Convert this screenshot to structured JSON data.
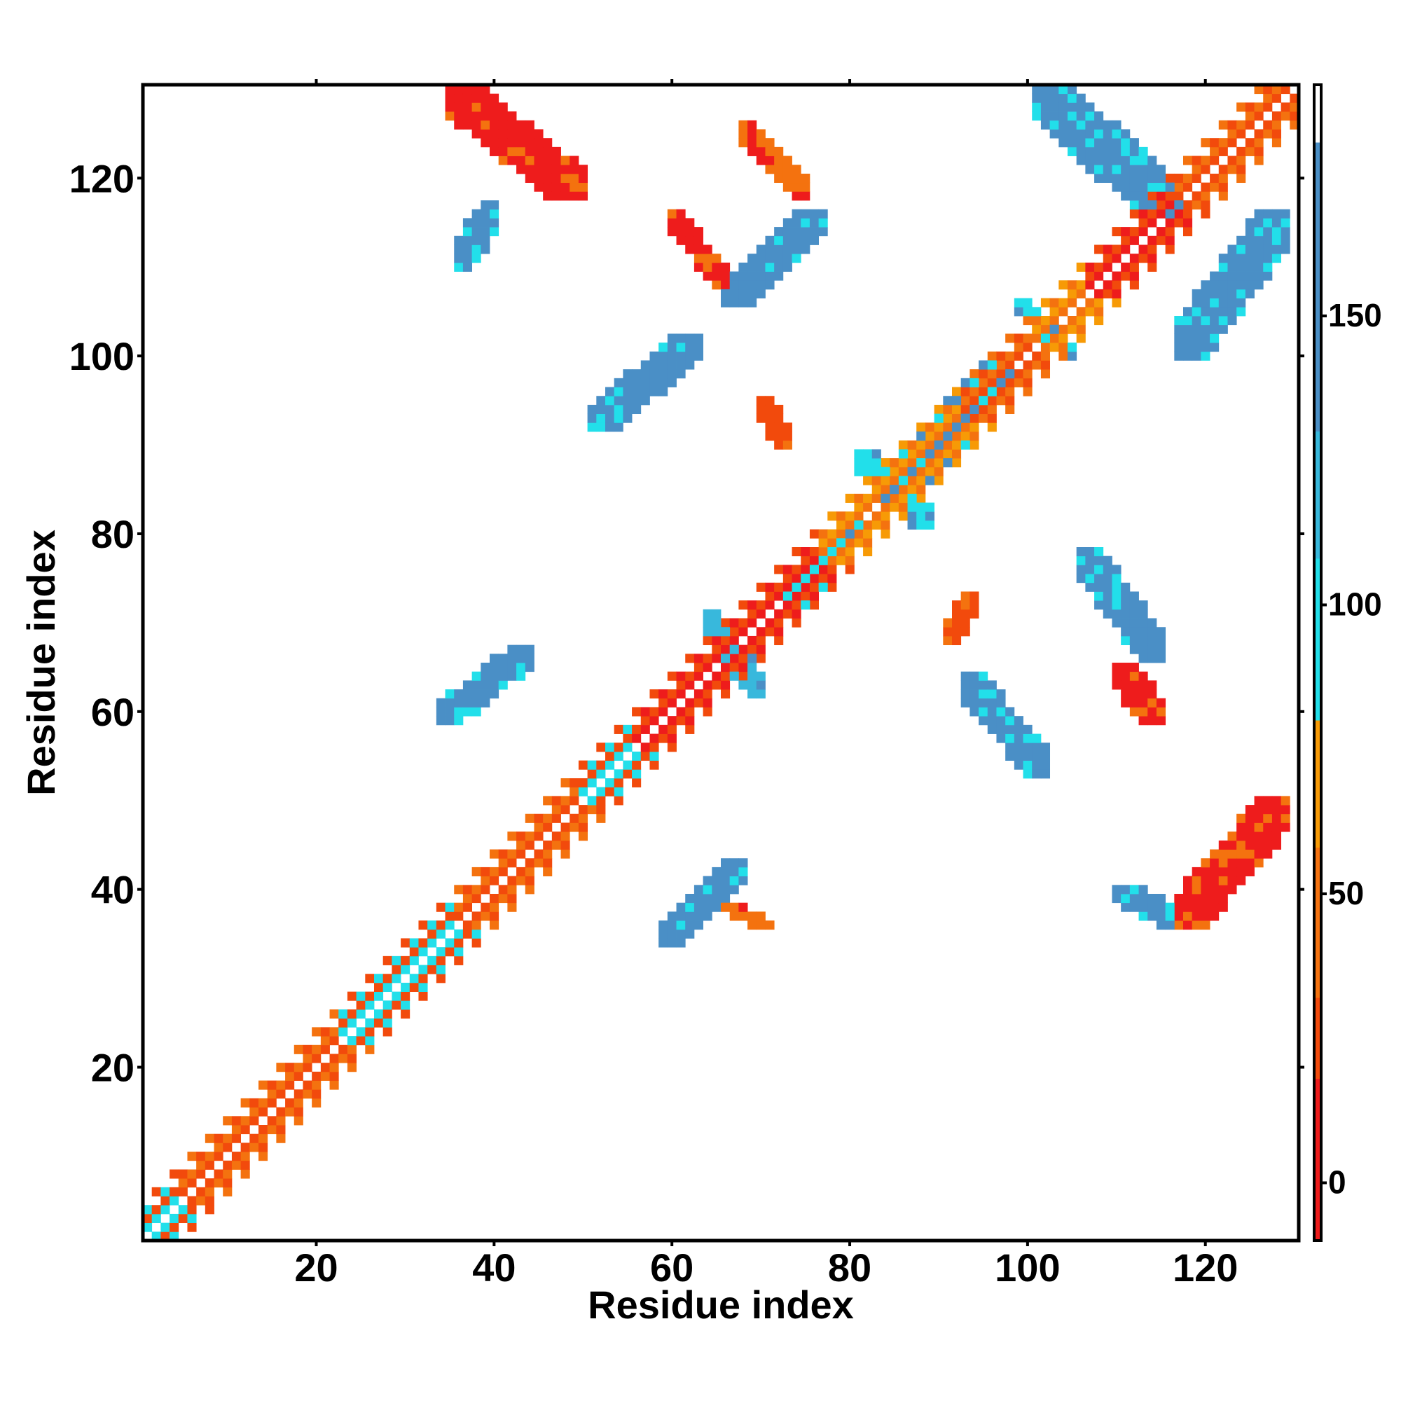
{
  "chart_data": {
    "type": "heatmap",
    "title": "",
    "xlabel": "Residue index",
    "ylabel": "Residue index",
    "xlim": [
      1,
      130
    ],
    "ylim": [
      1,
      130
    ],
    "x_ticks": [
      20,
      40,
      60,
      80,
      100,
      120
    ],
    "y_ticks": [
      20,
      40,
      60,
      80,
      100,
      120
    ],
    "grid": false,
    "colorbar": {
      "placement": "right",
      "range": [
        -10,
        190
      ],
      "ticks": [
        0,
        50,
        100,
        150
      ],
      "bands": [
        {
          "from": -10,
          "to": 18,
          "color": "#ee1c1c"
        },
        {
          "from": 18,
          "to": 32,
          "color": "#f24a0c"
        },
        {
          "from": 32,
          "to": 58,
          "color": "#f4720f"
        },
        {
          "from": 58,
          "to": 80,
          "color": "#f79a06"
        },
        {
          "from": 80,
          "to": 108,
          "color": "#22dfea"
        },
        {
          "from": 108,
          "to": 130,
          "color": "#38b8dc"
        },
        {
          "from": 130,
          "to": 180,
          "color": "#4a8fc6"
        },
        {
          "from": 180,
          "to": 190,
          "color": "#ffffff"
        }
      ]
    },
    "regions": [
      {
        "x": [
          1,
          130
        ],
        "y": [
          1,
          130
        ],
        "diag_offset": 0,
        "value": 160,
        "kind": "empty-diagonal"
      },
      {
        "kind": "diagonal-band",
        "x": [
          1,
          130
        ],
        "width": 3,
        "values_by_segment": [
          {
            "x": [
              1,
              4
            ],
            "value": 95
          },
          {
            "x": [
              4,
              22
            ],
            "value": 20
          },
          {
            "x": [
              22,
              35
            ],
            "value": 90
          },
          {
            "x": [
              35,
              49
            ],
            "value": 30
          },
          {
            "x": [
              49,
              55
            ],
            "value": 95
          },
          {
            "x": [
              55,
              76
            ],
            "value": 5
          },
          {
            "x": [
              76,
              86
            ],
            "value": 40
          },
          {
            "x": [
              86,
              92
            ],
            "value": 45
          },
          {
            "x": [
              92,
              100
            ],
            "value": 20
          },
          {
            "x": [
              100,
              106
            ],
            "value": 50
          },
          {
            "x": [
              106,
              116
            ],
            "value": 5
          },
          {
            "x": [
              116,
              130
            ],
            "value": 20
          }
        ]
      },
      {
        "kind": "cluster",
        "x": [
          35,
          50
        ],
        "y": [
          118,
          130
        ],
        "value": 10
      },
      {
        "kind": "cluster",
        "x": [
          36,
          40
        ],
        "y": [
          110,
          117
        ],
        "value": 145
      },
      {
        "kind": "cluster",
        "x": [
          60,
          66
        ],
        "y": [
          108,
          116
        ],
        "value": 10
      },
      {
        "kind": "cluster",
        "x": [
          66,
          77
        ],
        "y": [
          106,
          116
        ],
        "value": 145
      },
      {
        "kind": "cluster",
        "x": [
          68,
          75
        ],
        "y": [
          118,
          126
        ],
        "value": 55
      },
      {
        "kind": "cluster",
        "x": [
          51,
          63
        ],
        "y": [
          92,
          102
        ],
        "value": 140
      },
      {
        "kind": "cluster",
        "x": [
          70,
          73
        ],
        "y": [
          90,
          95
        ],
        "value": 25
      },
      {
        "kind": "cluster",
        "x": [
          86,
          98
        ],
        "y": [
          86,
          99
        ],
        "value": 145
      },
      {
        "kind": "cluster",
        "x": [
          81,
          89
        ],
        "y": [
          81,
          89
        ],
        "value": 105
      },
      {
        "kind": "cluster",
        "x": [
          73,
          81
        ],
        "y": [
          72,
          81
        ],
        "value": 105
      },
      {
        "kind": "cluster",
        "x": [
          64,
          70
        ],
        "y": [
          62,
          71
        ],
        "value": 120
      },
      {
        "kind": "cluster",
        "x": [
          34,
          44
        ],
        "y": [
          59,
          67
        ],
        "value": 140
      },
      {
        "kind": "cluster",
        "x": [
          59,
          68
        ],
        "y": [
          34,
          43
        ],
        "value": 140
      },
      {
        "kind": "cluster",
        "x": [
          66,
          71
        ],
        "y": [
          36,
          38
        ],
        "value": 40
      },
      {
        "kind": "cluster",
        "x": [
          93,
          102
        ],
        "y": [
          53,
          64
        ],
        "value": 140
      },
      {
        "kind": "cluster",
        "x": [
          91,
          94
        ],
        "y": [
          68,
          73
        ],
        "value": 25
      },
      {
        "kind": "cluster",
        "x": [
          106,
          115
        ],
        "y": [
          66,
          78
        ],
        "value": 145
      },
      {
        "kind": "cluster",
        "x": [
          110,
          115
        ],
        "y": [
          59,
          65
        ],
        "value": 8
      },
      {
        "kind": "cluster",
        "x": [
          117,
          129
        ],
        "y": [
          36,
          50
        ],
        "value": 8
      },
      {
        "kind": "cluster",
        "x": [
          110,
          118
        ],
        "y": [
          36,
          40
        ],
        "value": 140
      },
      {
        "kind": "cluster",
        "x": [
          101,
          117
        ],
        "y": [
          116,
          130
        ],
        "value": 145
      },
      {
        "kind": "cluster",
        "x": [
          117,
          129
        ],
        "y": [
          100,
          116
        ],
        "value": 145
      },
      {
        "kind": "cluster",
        "x": [
          99,
          105
        ],
        "y": [
          100,
          106
        ],
        "value": 105
      }
    ]
  }
}
